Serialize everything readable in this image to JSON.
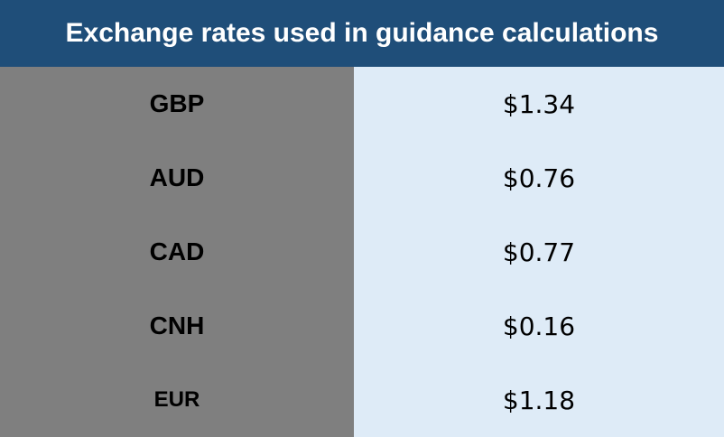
{
  "table": {
    "title": "Exchange rates used in guidance calculations",
    "rows": [
      [
        "GBP",
        "$1.34"
      ],
      [
        "AUD",
        "$0.76"
      ],
      [
        "CAD",
        "$0.77"
      ],
      [
        "CNH",
        "$0.16"
      ],
      [
        "EUR",
        "$1.18"
      ]
    ]
  }
}
